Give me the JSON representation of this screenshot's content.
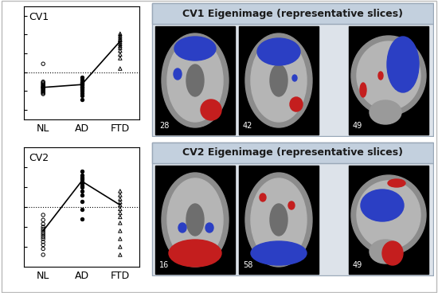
{
  "chart_data": [
    {
      "type": "scatter",
      "title": "CV1",
      "categories": [
        "NL",
        "AD",
        "FTD"
      ],
      "series": [
        {
          "type": "scatter",
          "values": [
            [
              0.9,
              -1.0,
              -1.1,
              -1.2,
              -1.3,
              -1.4,
              -1.5,
              -1.6,
              -1.6,
              -1.7,
              -1.8,
              -1.9,
              -2.0,
              -2.1,
              -2.2,
              -2.3
            ],
            [
              -0.5,
              -0.8,
              -1.0,
              -1.1,
              -1.2,
              -1.3,
              -1.4,
              -1.5,
              -1.6,
              -1.8,
              -2.0,
              -2.2,
              -2.5,
              -2.9
            ],
            [
              4.1,
              3.9,
              3.7,
              3.5,
              3.4,
              3.2,
              3.0,
              2.8,
              2.6,
              2.3,
              1.9,
              1.5,
              0.4
            ]
          ]
        },
        {
          "type": "line",
          "values": [
            -1.6,
            -1.3,
            3.3
          ]
        }
      ],
      "reference": 0,
      "ylim": [
        -5,
        7
      ],
      "yticks": [
        -4,
        -2,
        0,
        2,
        4,
        6
      ],
      "tick_labels": "x"
    },
    {
      "type": "scatter",
      "title": "CV2",
      "categories": [
        "NL",
        "AD",
        "FTD"
      ],
      "series": [
        {
          "type": "scatter",
          "values": [
            [
              -0.8,
              -1.3,
              -1.7,
              -2.0,
              -2.2,
              -2.4,
              -2.6,
              -2.8,
              -3.0,
              -3.2,
              -3.5,
              -3.8,
              -4.2,
              -4.8
            ],
            [
              3.6,
              3.2,
              3.0,
              2.8,
              2.6,
              2.4,
              2.2,
              2.0,
              1.6,
              1.2,
              0.6,
              -0.2,
              -1.2
            ],
            [
              1.6,
              1.2,
              0.8,
              0.5,
              0.2,
              -0.2,
              -0.6,
              -1.0,
              -1.6,
              -2.4,
              -3.2,
              -4.0,
              -4.8
            ]
          ]
        },
        {
          "type": "line",
          "values": [
            -2.4,
            2.6,
            0.2
          ]
        }
      ],
      "reference": 0,
      "ylim": [
        -6,
        6
      ],
      "yticks": [
        -4,
        -2,
        0,
        2,
        4
      ],
      "tick_labels": "x"
    }
  ],
  "panels": [
    {
      "title": "CV1 Eigenimage (representative slices)",
      "slices": [
        28,
        42,
        49
      ]
    },
    {
      "title": "CV2 Eigenimage (representative slices)",
      "slices": [
        16,
        58,
        49
      ]
    }
  ]
}
